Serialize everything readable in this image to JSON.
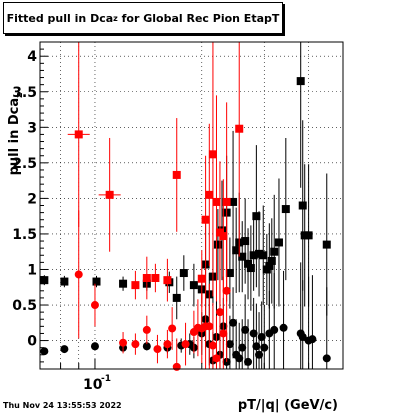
{
  "header": {
    "title_main": "Fitted pull in Dca",
    "title_sub": "z",
    "title_tail": " for Global Rec Pion EtapT"
  },
  "footer": {
    "timestamp": "Thu Nov 24 13:55:53 2022"
  },
  "chart_data": {
    "type": "scatter",
    "title": "Fitted pull in Dca_z for Global Rec Pion EtapT",
    "xlabel": "pT/|q| (GeV/c)",
    "ylabel": "pull in Dca",
    "ylabel_sub": "z",
    "x_scale": "log",
    "xlim": [
      0.07,
      0.5
    ],
    "ylim": [
      -0.4,
      4.2
    ],
    "x_tick_label": "10",
    "x_tick_exp": "-1",
    "y_ticks": [
      "0",
      "0.5",
      "1",
      "1.5",
      "2",
      "2.5",
      "3",
      "3.5",
      "4"
    ],
    "grid": true,
    "series": [
      {
        "color": "#000000",
        "marker": "square",
        "points": [
          [
            0.072,
            0.85,
            0.07
          ],
          [
            0.082,
            0.83,
            0.08
          ],
          [
            0.101,
            0.83,
            0.08
          ],
          [
            0.12,
            0.8,
            0.1
          ],
          [
            0.14,
            0.8,
            0.1
          ],
          [
            0.162,
            0.82,
            0.15
          ],
          [
            0.17,
            0.6,
            0.3
          ],
          [
            0.178,
            0.95,
            0.25
          ],
          [
            0.19,
            0.78,
            0.3
          ],
          [
            0.2,
            0.72,
            0.2
          ],
          [
            0.205,
            1.07,
            0.6
          ],
          [
            0.21,
            0.65,
            0.3
          ],
          [
            0.215,
            0.9,
            0.4
          ],
          [
            0.222,
            1.35,
            0.5
          ],
          [
            0.228,
            1.55,
            0.7
          ],
          [
            0.235,
            1.8,
            0.8
          ],
          [
            0.24,
            0.95,
            0.5
          ],
          [
            0.245,
            1.95,
            1.0
          ],
          [
            0.25,
            1.27,
            0.6
          ],
          [
            0.255,
            1.38,
            0.7
          ],
          [
            0.26,
            1.18,
            0.5
          ],
          [
            0.265,
            1.4,
            0.6
          ],
          [
            0.27,
            1.08,
            0.5
          ],
          [
            0.275,
            1.02,
            0.6
          ],
          [
            0.28,
            1.2,
            0.5
          ],
          [
            0.285,
            1.75,
            1.0
          ],
          [
            0.29,
            1.22,
            0.6
          ],
          [
            0.298,
            1.2,
            0.7
          ],
          [
            0.305,
            1.0,
            0.5
          ],
          [
            0.31,
            1.05,
            0.6
          ],
          [
            0.315,
            1.12,
            0.6
          ],
          [
            0.32,
            1.25,
            0.8
          ],
          [
            0.33,
            1.38,
            0.9
          ],
          [
            0.345,
            1.85,
            1.0
          ],
          [
            0.38,
            3.65,
            1.5
          ],
          [
            0.39,
            1.48,
            1.0
          ],
          [
            0.385,
            1.9,
            1.2
          ],
          [
            0.4,
            1.48,
            1.0
          ],
          [
            0.45,
            1.35,
            1.0
          ]
        ]
      },
      {
        "color": "#ff0000",
        "marker": "square",
        "points": [
          [
            0.09,
            2.9,
            1.3
          ],
          [
            0.11,
            2.05,
            0.8
          ],
          [
            0.13,
            0.78,
            0.2
          ],
          [
            0.14,
            0.88,
            0.3
          ],
          [
            0.148,
            0.88,
            0.2
          ],
          [
            0.16,
            0.85,
            0.3
          ],
          [
            0.17,
            2.33,
            0.8
          ],
          [
            0.2,
            0.87,
            0.4
          ],
          [
            0.205,
            1.7,
            0.9
          ],
          [
            0.21,
            2.05,
            1.0
          ],
          [
            0.215,
            2.62,
            2.0
          ],
          [
            0.22,
            1.95,
            1.5
          ],
          [
            0.225,
            1.52,
            1.0
          ],
          [
            0.23,
            1.47,
            0.8
          ],
          [
            0.235,
            1.95,
            1.4
          ],
          [
            0.255,
            2.98,
            1.8
          ]
        ]
      },
      {
        "color": "#000000",
        "marker": "circle",
        "points": [
          [
            0.072,
            -0.15,
            0.05
          ],
          [
            0.082,
            -0.12,
            0.05
          ],
          [
            0.1,
            -0.08,
            0.05
          ],
          [
            0.12,
            -0.1,
            0.05
          ],
          [
            0.14,
            -0.08,
            0.06
          ],
          [
            0.16,
            -0.1,
            0.08
          ],
          [
            0.175,
            -0.07,
            0.1
          ],
          [
            0.185,
            -0.05,
            0.15
          ],
          [
            0.19,
            -0.1,
            0.15
          ],
          [
            0.2,
            0.1,
            0.3
          ],
          [
            0.205,
            0.3,
            0.4
          ],
          [
            0.21,
            -0.05,
            0.3
          ],
          [
            0.215,
            -0.28,
            0.4
          ],
          [
            0.22,
            0.05,
            0.5
          ],
          [
            0.225,
            -0.2,
            0.4
          ],
          [
            0.23,
            0.2,
            0.4
          ],
          [
            0.235,
            -0.3,
            0.4
          ],
          [
            0.24,
            -0.05,
            0.4
          ],
          [
            0.245,
            0.25,
            0.5
          ],
          [
            0.25,
            -0.2,
            0.5
          ],
          [
            0.255,
            -0.25,
            0.5
          ],
          [
            0.26,
            -0.1,
            0.4
          ],
          [
            0.265,
            0.15,
            0.5
          ],
          [
            0.27,
            -0.3,
            0.6
          ],
          [
            0.28,
            0.1,
            0.5
          ],
          [
            0.285,
            -0.08,
            0.6
          ],
          [
            0.29,
            -0.2,
            0.6
          ],
          [
            0.295,
            0.05,
            0.5
          ],
          [
            0.3,
            -0.1,
            0.6
          ],
          [
            0.31,
            0.1,
            0.6
          ],
          [
            0.32,
            0.15,
            0.8
          ],
          [
            0.34,
            0.18,
            0.8
          ],
          [
            0.38,
            0.1,
            1.0
          ],
          [
            0.385,
            0.05,
            0.8
          ],
          [
            0.4,
            0.0,
            0.9
          ],
          [
            0.41,
            0.02,
            0.9
          ],
          [
            0.45,
            -0.25,
            1.0
          ]
        ]
      },
      {
        "color": "#ff0000",
        "marker": "circle",
        "points": [
          [
            0.09,
            0.93,
            0.9
          ],
          [
            0.1,
            0.5,
            0.3
          ],
          [
            0.12,
            -0.03,
            0.15
          ],
          [
            0.13,
            -0.05,
            0.15
          ],
          [
            0.14,
            0.15,
            0.2
          ],
          [
            0.15,
            -0.12,
            0.2
          ],
          [
            0.16,
            -0.05,
            0.2
          ],
          [
            0.165,
            0.17,
            0.3
          ],
          [
            0.17,
            -0.37,
            0.4
          ],
          [
            0.18,
            -0.05,
            0.3
          ],
          [
            0.19,
            0.12,
            0.3
          ],
          [
            0.195,
            0.18,
            0.4
          ],
          [
            0.2,
            0.17,
            0.5
          ],
          [
            0.205,
            0.2,
            0.6
          ],
          [
            0.21,
            0.2,
            0.6
          ],
          [
            0.215,
            -0.07,
            0.6
          ],
          [
            0.22,
            -0.25,
            0.6
          ],
          [
            0.225,
            0.4,
            0.9
          ],
          [
            0.23,
            0.1,
            0.8
          ],
          [
            0.235,
            0.7,
            1.0
          ]
        ]
      }
    ]
  }
}
